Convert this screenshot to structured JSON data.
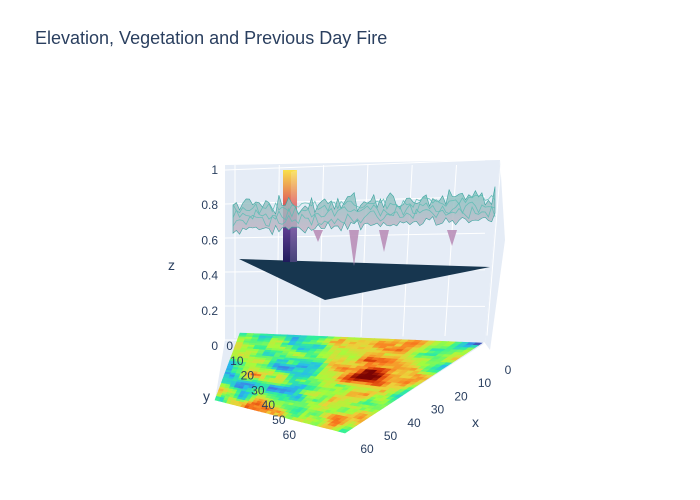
{
  "chart_data": {
    "type": "surface3d",
    "title": "Elevation, Vegetation and Previous Day Fire",
    "axes": {
      "x": {
        "label": "x",
        "ticks": [
          0,
          10,
          20,
          30,
          40,
          50,
          60
        ],
        "range": [
          0,
          63
        ]
      },
      "y": {
        "label": "y",
        "ticks": [
          0,
          10,
          20,
          30,
          40,
          50,
          60
        ],
        "range": [
          0,
          63
        ]
      },
      "z": {
        "label": "z",
        "ticks": [
          0,
          0.2,
          0.4,
          0.6,
          0.8,
          1
        ],
        "range": [
          0,
          1
        ]
      }
    },
    "series": [
      {
        "name": "Elevation",
        "z_level": 0,
        "colorscale": "turbo",
        "description_values": {
          "min": 0,
          "max": 1
        }
      },
      {
        "name": "Previous Day Fire",
        "z_level": 0.5,
        "color": "#0f3049",
        "fire_peak": {
          "x": 6,
          "y": 0,
          "z": 1
        }
      },
      {
        "name": "Vegetation",
        "z_mean": 0.83,
        "z_min": 0.6,
        "z_max": 0.9,
        "colorscale": "teal-pink"
      }
    ]
  }
}
